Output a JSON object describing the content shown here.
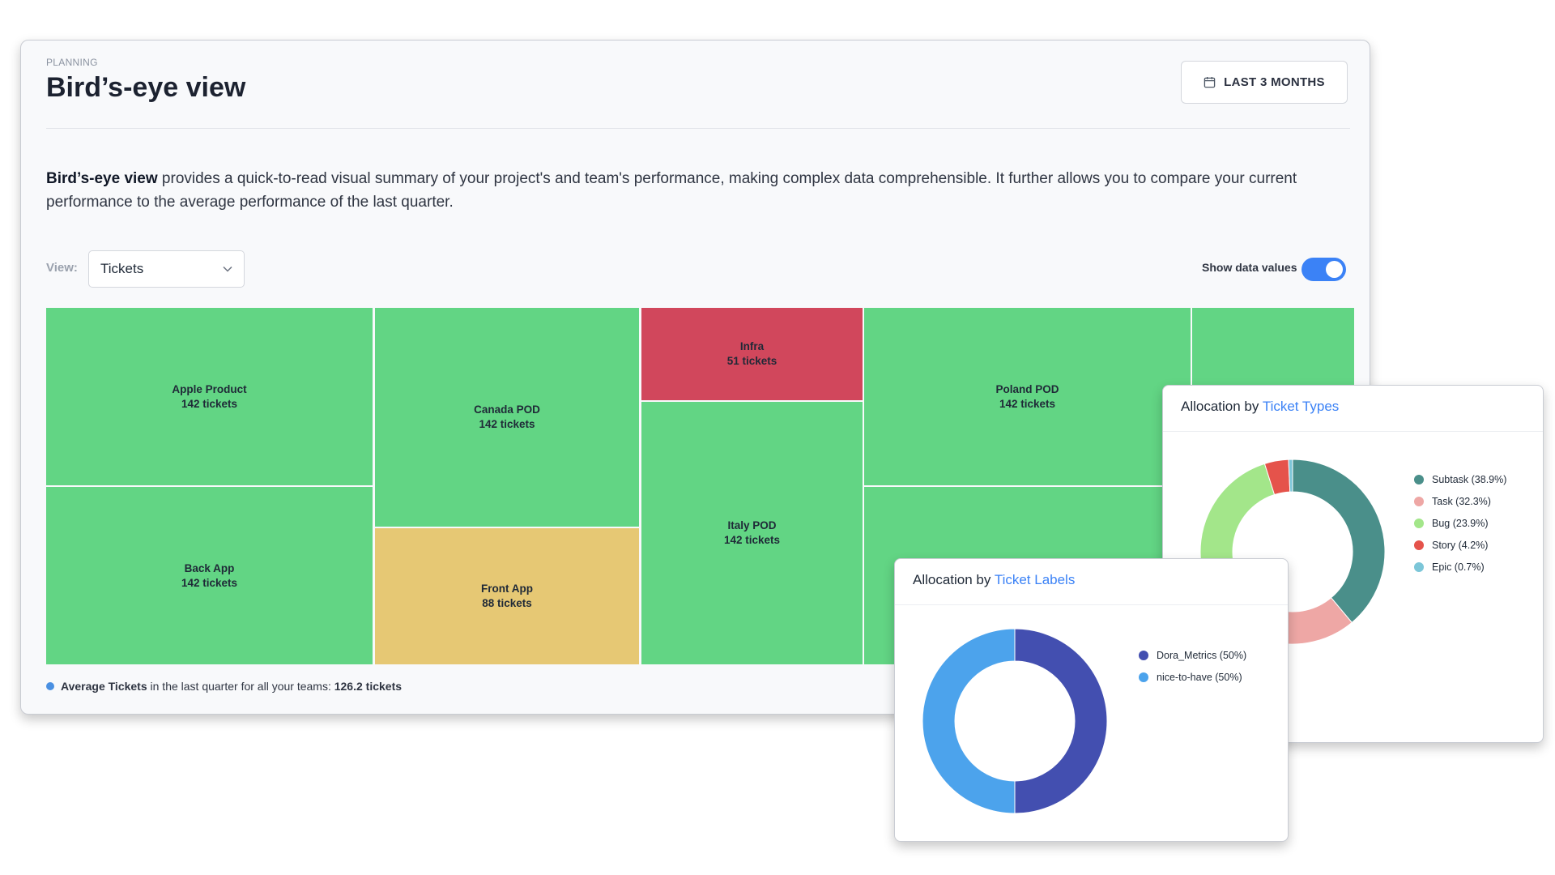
{
  "header": {
    "eyebrow": "PLANNING",
    "title": "Bird’s-eye view",
    "date_range_label": "LAST 3 MONTHS"
  },
  "description": {
    "bold": "Bird’s-eye view",
    "text": " provides a quick-to-read visual summary of your project's and team's performance, making complex data comprehensible. It further allows you to compare your current performance to the average performance of the last quarter."
  },
  "controls": {
    "view_label": "View:",
    "view_value": "Tickets",
    "toggle_label": "Show data values",
    "toggle_on": true
  },
  "treemap": {
    "tiles": [
      {
        "name": "Apple Product",
        "value": "142 tickets",
        "status": "green"
      },
      {
        "name": "Back App",
        "value": "142 tickets",
        "status": "green"
      },
      {
        "name": "Canada POD",
        "value": "142 tickets",
        "status": "green"
      },
      {
        "name": "Front App",
        "value": "88 tickets",
        "status": "yellow"
      },
      {
        "name": "Infra",
        "value": "51 tickets",
        "status": "red"
      },
      {
        "name": "Italy POD",
        "value": "142 tickets",
        "status": "green"
      },
      {
        "name": "Poland POD",
        "value": "142 tickets",
        "status": "green"
      }
    ]
  },
  "average": {
    "bold": "Average Tickets",
    "mid": " in the last quarter for all your teams: ",
    "value": "126.2 tickets"
  },
  "ticket_types": {
    "title_prefix": "Allocation by ",
    "title_link": "Ticket Types",
    "legend": [
      {
        "label": "Subtask (38.9%)",
        "color": "#4a8f8a"
      },
      {
        "label": "Task (32.3%)",
        "color": "#eea7a5"
      },
      {
        "label": "Bug (23.9%)",
        "color": "#a3e68a"
      },
      {
        "label": "Story (4.2%)",
        "color": "#e5534b"
      },
      {
        "label": "Epic (0.7%)",
        "color": "#7cc6d8"
      }
    ]
  },
  "ticket_labels": {
    "title_prefix": "Allocation by ",
    "title_link": "Ticket Labels",
    "legend": [
      {
        "label": "Dora_Metrics (50%)",
        "color": "#434fb0"
      },
      {
        "label": "nice-to-have (50%)",
        "color": "#4ca3ec"
      }
    ]
  },
  "colors": {
    "green": "#62d584",
    "yellow": "#e6c874",
    "red": "#d1475c",
    "accent": "#3b82f6"
  }
}
